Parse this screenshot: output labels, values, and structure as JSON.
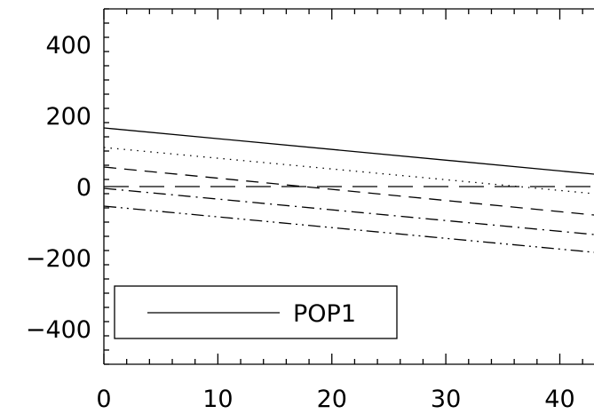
{
  "chart_data": {
    "type": "line",
    "title": "",
    "xlabel": "",
    "ylabel": "",
    "xlim": [
      0,
      43
    ],
    "ylim": [
      -500,
      500
    ],
    "x_ticks": [
      0,
      10,
      20,
      30,
      40
    ],
    "x_tick_labels": [
      "0",
      "10",
      "20",
      "30",
      "40"
    ],
    "y_ticks": [
      -400,
      -200,
      0,
      200,
      400
    ],
    "y_tick_labels": [
      "−400",
      "−200",
      "0",
      "200",
      "400"
    ],
    "grid": false,
    "legend_position": "bottom-left",
    "legend_entries": [
      "POP1"
    ],
    "series": [
      {
        "name": "POP1",
        "style": "solid",
        "x": [
          0,
          43
        ],
        "values": [
          165,
          35
        ]
      },
      {
        "style": "dotted",
        "x": [
          0,
          43
        ],
        "values": [
          110,
          -20
        ]
      },
      {
        "style": "dashed",
        "x": [
          0,
          43
        ],
        "values": [
          55,
          -80
        ]
      },
      {
        "style": "long-dash",
        "x": [
          0,
          43
        ],
        "values": [
          0,
          0
        ]
      },
      {
        "style": "dash-dot",
        "x": [
          0,
          43
        ],
        "values": [
          -5,
          -135
        ]
      },
      {
        "style": "dash-dot-dot",
        "x": [
          0,
          43
        ],
        "values": [
          -55,
          -185
        ]
      }
    ],
    "colors": {
      "line": "#000000",
      "background": "#ffffff"
    }
  }
}
